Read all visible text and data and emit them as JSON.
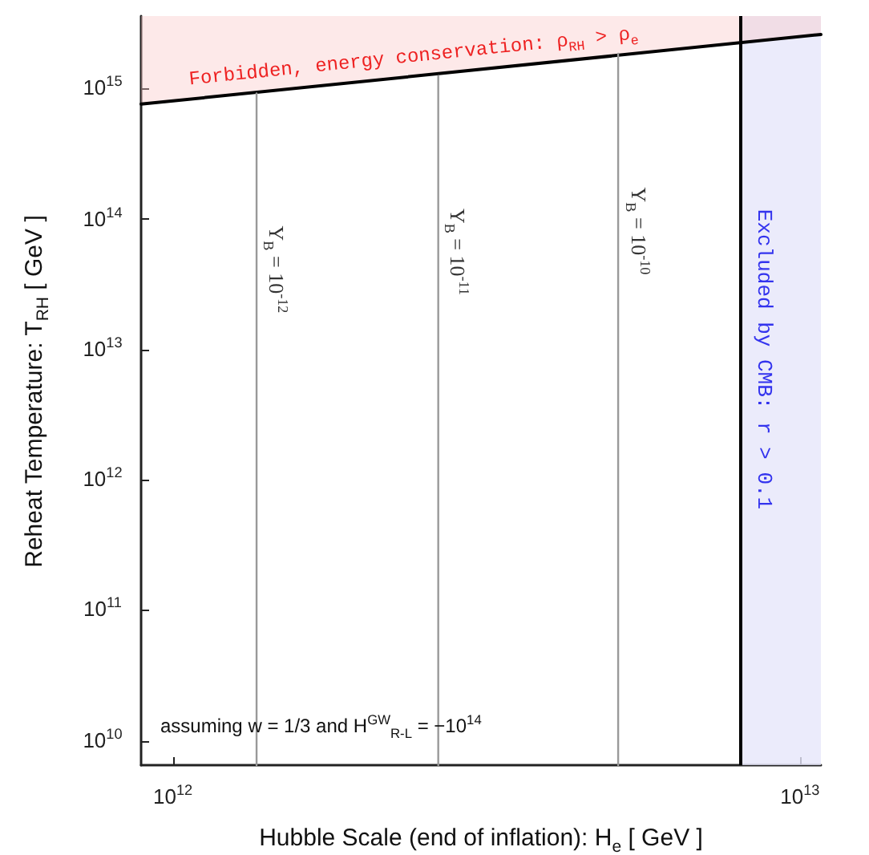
{
  "chart_data": {
    "type": "line",
    "xlabel": "Hubble Scale (end of inflation):  H$_{e}$  [ GeV ]",
    "ylabel": "Reheat Temperature:  T$_{RH}$  [ GeV ]",
    "log": "xy",
    "xlim": [
      890000000000.0,
      10800000000000.0
    ],
    "ylim": [
      6500000000.0,
      3600000000000000.0
    ],
    "xticks": [
      {
        "value": 1000000000000.0,
        "label": "10$^{12}$"
      },
      {
        "value": 10000000000000.0,
        "label": "10$^{13}$"
      }
    ],
    "yticks": [
      {
        "value": 10000000000.0,
        "label": "10$^{10}$"
      },
      {
        "value": 100000000000.0,
        "label": "10$^{11}$"
      },
      {
        "value": 1000000000000.0,
        "label": "10$^{12}$"
      },
      {
        "value": 10000000000000.0,
        "label": "10$^{13}$"
      },
      {
        "value": 100000000000000.0,
        "label": "10$^{14}$"
      },
      {
        "value": 1000000000000000.0,
        "label": "10$^{15}$"
      }
    ],
    "series": [
      {
        "name": "Forbidden, energy conservation:  ρ$_{RH}$ > ρ$_{e}$",
        "color": "#000000",
        "x": [
          890000000000.0,
          10800000000000.0
        ],
        "values": [
          760000000000000.0,
          2600000000000000.0
        ],
        "lower": [
          760000000000000.0,
          2600000000000000.0
        ],
        "upper": [
          3600000000000000.0,
          3600000000000000.0
        ]
      },
      {
        "name": "Y$_{B}$ = 10$^{-12}$",
        "color": "#999999",
        "x": [
          1360000000000.0,
          1360000000000.0
        ],
        "values": [
          6500000000.0,
          920000000000000.0
        ]
      },
      {
        "name": "Y$_{B}$ = 10$^{-11}$",
        "color": "#999999",
        "x": [
          2650000000000.0,
          2650000000000.0
        ],
        "values": [
          6500000000.0,
          1250000000000000.0
        ]
      },
      {
        "name": "Y$_{B}$ = 10$^{-10}$",
        "color": "#999999",
        "x": [
          5130000000000.0,
          5130000000000.0
        ],
        "values": [
          6500000000.0,
          1850000000000000.0
        ]
      }
    ],
    "bands": [
      {
        "axis": "x",
        "from": 8040000000000.0,
        "to": 10800000000000.0,
        "label": "Excluded by CMB:  r > 0.1",
        "color": "#e6e6fa"
      }
    ],
    "ref_lines": [
      {
        "axis": "x",
        "value": 8040000000000.0,
        "color": "#000000"
      }
    ],
    "annotations": [
      "assuming w = 1/3 and H$^{GW}$$_{R-L}$ = −10$^{14}$"
    ],
    "grid": false,
    "legend": false,
    "marker": "none",
    "line_style": "solid"
  }
}
